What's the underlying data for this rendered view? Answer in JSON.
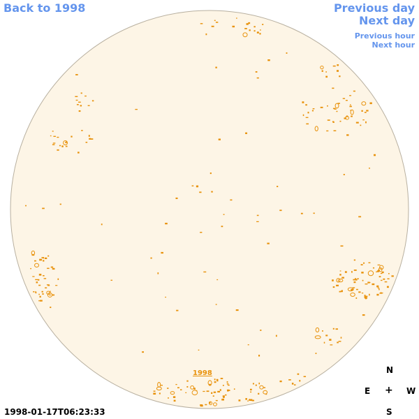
{
  "nav": {
    "back_label": "Back to 1998",
    "previous_day_label": "Previous day",
    "next_day_label": "Next day",
    "previous_hour_label": "Previous hour",
    "next_hour_label": "Next hour"
  },
  "disk": {
    "year_link": "1998",
    "fill_color": "#fdf5e6",
    "contour_color": "#e8920c"
  },
  "compass": {
    "north": "N",
    "east": "E",
    "center": "+",
    "west": "W",
    "south": "S"
  },
  "timestamp": "1998-01-17T06:23:33"
}
